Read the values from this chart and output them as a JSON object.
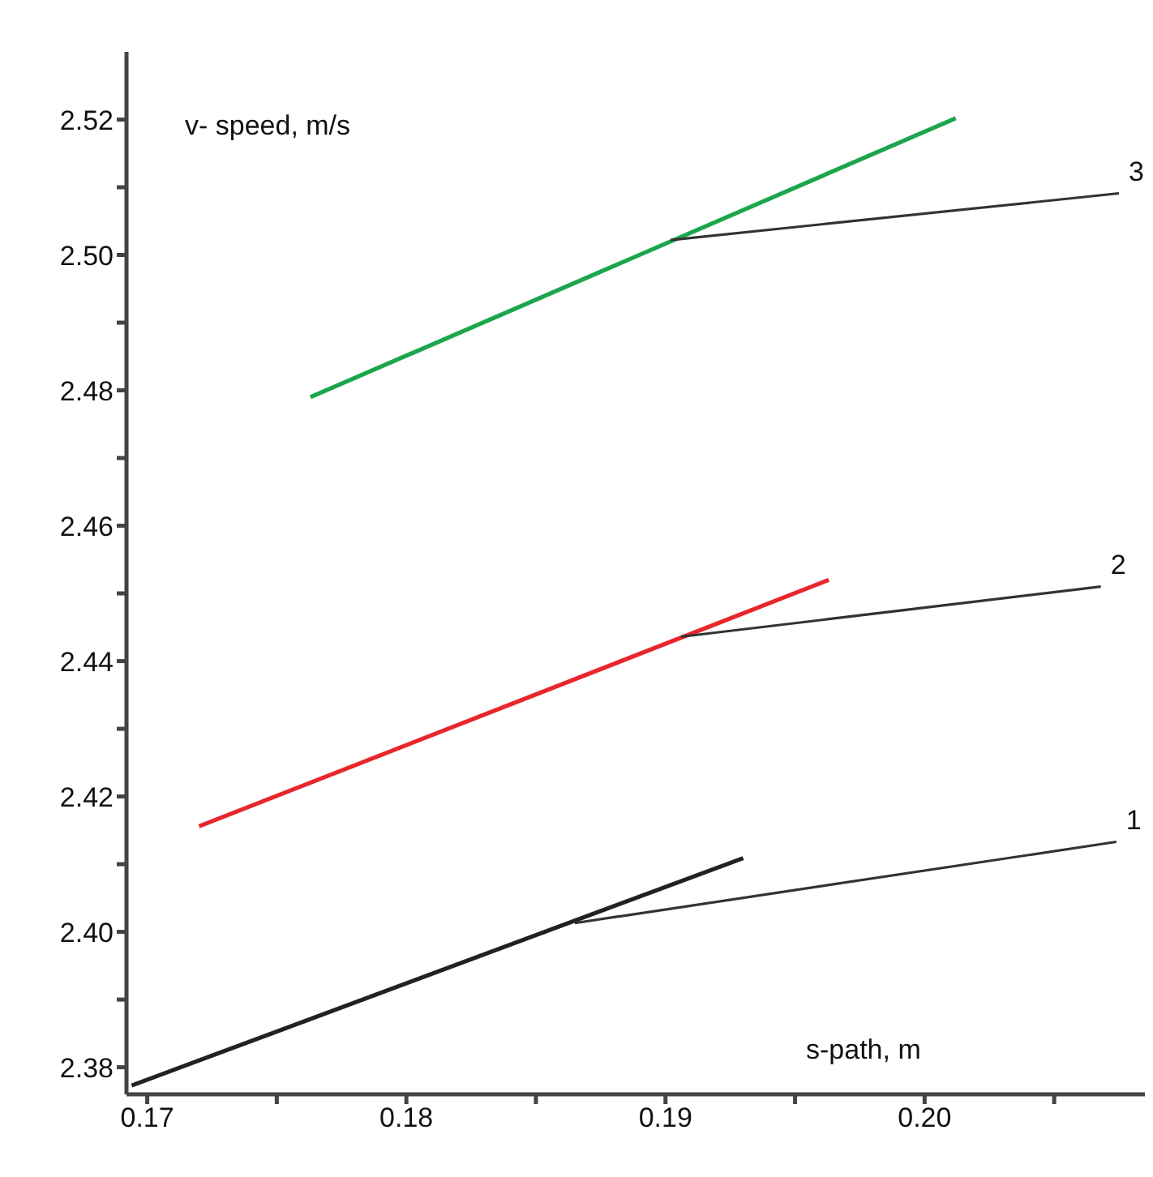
{
  "chart_data": {
    "type": "line",
    "xlabel": "s-path, m",
    "ylabel": "v- speed, m/s",
    "xlim": [
      0.1692,
      0.2085
    ],
    "ylim": [
      2.376,
      2.53
    ],
    "xticks": [
      0.17,
      {
        "value": 0.175,
        "label": null
      },
      0.18,
      {
        "value": 0.185,
        "label": null
      },
      0.19,
      {
        "value": 0.195,
        "label": null
      },
      {
        "value": 0.2,
        "label": "0.20"
      },
      {
        "value": 0.205,
        "label": null
      }
    ],
    "yticks": [
      2.38,
      {
        "value": 2.39,
        "label": null
      },
      {
        "value": 2.4,
        "label": "2.40"
      },
      {
        "value": 2.41,
        "label": null
      },
      2.42,
      {
        "value": 2.43,
        "label": null
      },
      2.44,
      {
        "value": 2.45,
        "label": null
      },
      2.46,
      {
        "value": 2.47,
        "label": null
      },
      2.48,
      {
        "value": 2.49,
        "label": null
      },
      {
        "value": 2.5,
        "label": "2.50"
      },
      {
        "value": 2.51,
        "label": null
      },
      2.52
    ],
    "grid": false,
    "marker": "none",
    "line_style": "solid",
    "series": [
      {
        "color": "#222222",
        "x": [
          0.1694,
          0.193
        ],
        "values": [
          2.3773,
          2.4109
        ]
      },
      {
        "name": "1",
        "color": "#333333",
        "x": [
          0.1865,
          0.2074
        ],
        "values": [
          2.4013,
          2.4133
        ]
      },
      {
        "color": "#e8262c",
        "x": [
          0.172,
          0.1963
        ],
        "values": [
          2.4156,
          2.452
        ]
      },
      {
        "name": "2",
        "color": "#333333",
        "x": [
          0.1906,
          0.2068
        ],
        "values": [
          2.4436,
          2.451
        ]
      },
      {
        "color": "#1ca64c",
        "x": [
          0.1763,
          0.2012
        ],
        "values": [
          2.479,
          2.5202
        ]
      },
      {
        "name": "3",
        "color": "#333333",
        "x": [
          0.1902,
          0.2075
        ],
        "values": [
          2.5022,
          2.5091
        ]
      }
    ]
  }
}
